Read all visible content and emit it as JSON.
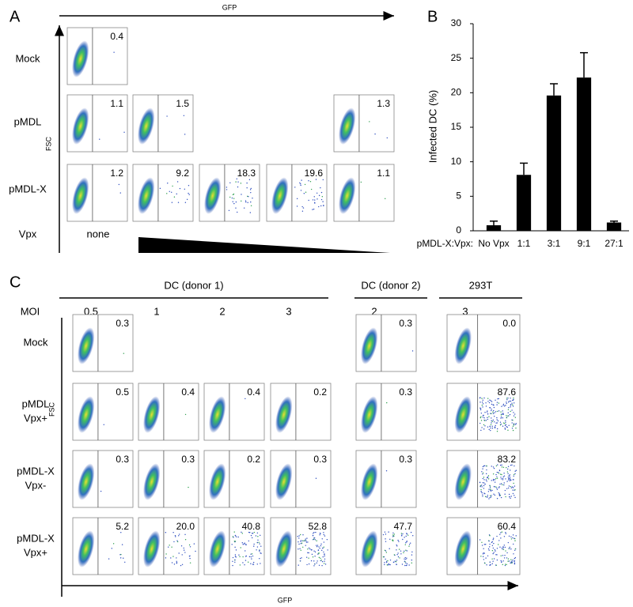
{
  "panel_a": {
    "label": "A",
    "x_axis": "GFP",
    "y_axis": "FSC",
    "rows": [
      "Mock",
      "pMDL",
      "pMDL-X",
      "Vpx"
    ],
    "vpx_none": "none",
    "grid": [
      [
        "0.4",
        null,
        null,
        null,
        null
      ],
      [
        "1.1",
        "1.5",
        null,
        null,
        "1.3"
      ],
      [
        "1.2",
        "9.2",
        "18.3",
        "19.6",
        "1.1"
      ]
    ]
  },
  "chart_data": {
    "type": "bar",
    "panel_label": "B",
    "y_label": "Infected DC (%)",
    "x_prefix": "pMDL-X:Vpx:",
    "categories": [
      "No Vpx",
      "1:1",
      "3:1",
      "9:1",
      "27:1"
    ],
    "values": [
      0.8,
      8.1,
      19.6,
      22.2,
      1.2
    ],
    "errors": [
      0.6,
      1.7,
      1.7,
      3.6,
      0.2
    ],
    "color": "#000000",
    "ylim": [
      0,
      30
    ],
    "yticks": [
      0,
      5,
      10,
      15,
      20,
      25,
      30
    ],
    "grid": false
  },
  "panel_c": {
    "label": "C",
    "x_axis": "GFP",
    "y_axis": "FSC",
    "moi_label": "MOI",
    "groups": [
      {
        "name": "DC (donor 1)",
        "mois": [
          "0.5",
          "1",
          "2",
          "3"
        ]
      },
      {
        "name": "DC (donor 2)",
        "mois": [
          "2"
        ]
      },
      {
        "name": "293T",
        "mois": [
          "3"
        ]
      }
    ],
    "rows": [
      [
        "Mock"
      ],
      [
        "pMDL",
        "Vpx+"
      ],
      [
        "pMDL-X",
        "Vpx-"
      ],
      [
        "pMDL-X",
        "Vpx+"
      ]
    ],
    "grid": [
      [
        "0.3",
        null,
        null,
        null,
        "0.3",
        "0.0"
      ],
      [
        "0.5",
        "0.4",
        "0.4",
        "0.2",
        "0.3",
        "87.6"
      ],
      [
        "0.3",
        "0.3",
        "0.2",
        "0.3",
        "0.3",
        "83.2"
      ],
      [
        "5.2",
        "20.0",
        "40.8",
        "52.8",
        "47.7",
        "60.4"
      ]
    ]
  }
}
